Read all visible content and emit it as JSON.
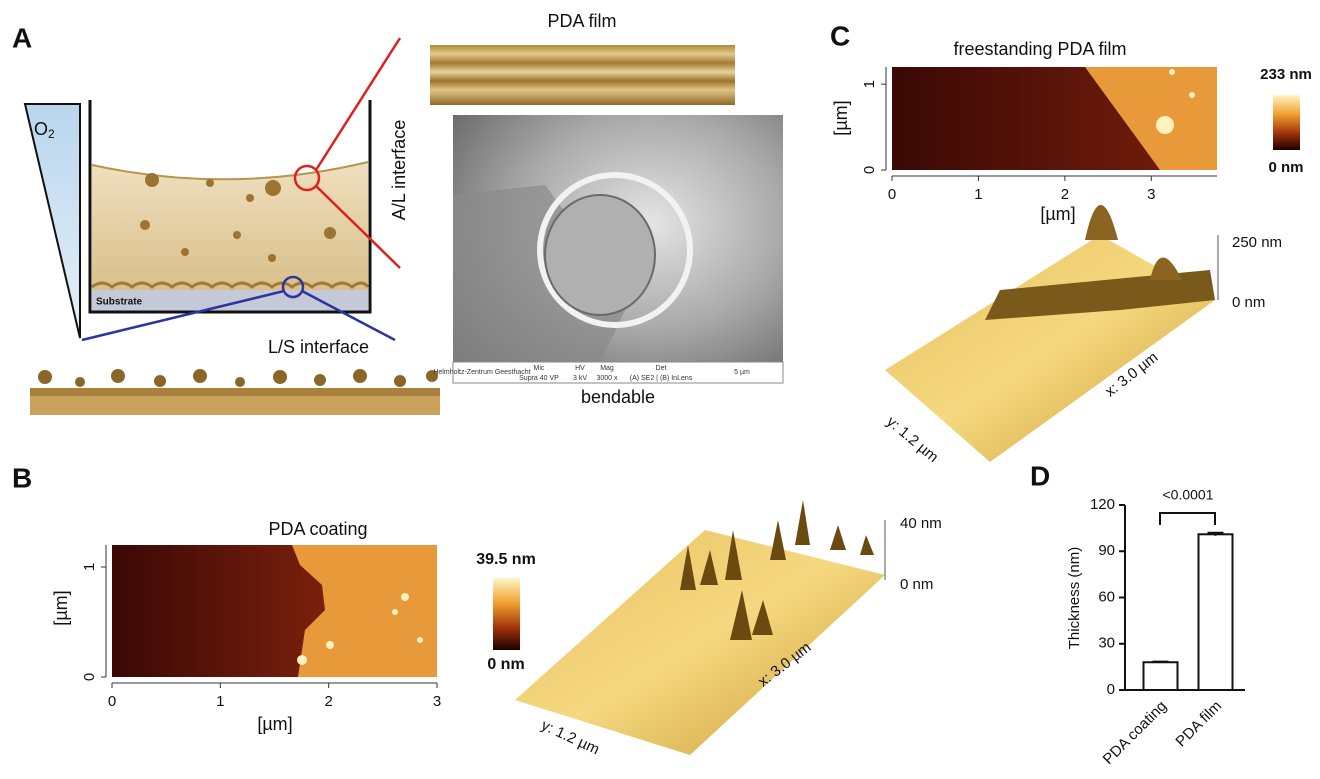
{
  "panels": {
    "A": {
      "letter": "A",
      "o2": "O",
      "o2_sub": "2",
      "al_interface": "A/L interface",
      "ls_interface": "L/S interface",
      "substrate": "Substrate",
      "film_title": "PDA film",
      "caption": "bendable",
      "sem_info": [
        "Helmholtz-Zentrum Geesthacht",
        "Mic",
        "Supra 40 VP",
        "HV",
        "3 kV",
        "Mag",
        "3000 x",
        "Det",
        "(A) SE2 | (B) InLens",
        "5 µm"
      ]
    },
    "B": {
      "letter": "B",
      "title": "PDA coating",
      "x_label": "[µm]",
      "y_label": "[µm]",
      "xlim": [
        0,
        3
      ],
      "xticks": [
        0,
        1,
        2,
        3
      ],
      "ylim": [
        0,
        1.2
      ],
      "yticks": [
        0,
        1
      ],
      "scale_max": "39.5 nm",
      "scale_min": "0 nm",
      "z_max": "40 nm",
      "z_min": "0 nm",
      "x3d": "x: 3.0 µm",
      "y3d": "y: 1.2 µm"
    },
    "C": {
      "letter": "C",
      "title": "freestanding PDA film",
      "x_label": "[µm]",
      "y_label": "[µm]",
      "xlim": [
        0,
        3.76
      ],
      "xticks": [
        0,
        1,
        2,
        3
      ],
      "ylim": [
        0,
        1.2
      ],
      "yticks": [
        0,
        1
      ],
      "scale_max": "233 nm",
      "scale_min": "0 nm",
      "z_max": "250 nm",
      "z_min": "0 nm",
      "x3d": "x: 3.0 µm",
      "y3d": "y: 1.2 µm"
    }
  },
  "chart_data": {
    "type": "bar",
    "letter": "D",
    "y_label": "Thickness (nm)",
    "annotation": "<0.0001",
    "categories": [
      "PDA coating",
      "PDA film"
    ],
    "values": [
      18,
      101
    ],
    "errors": [
      0.4,
      1
    ],
    "color": "#ffffff",
    "ylim": [
      0,
      120
    ],
    "yticks": [
      0,
      30,
      60,
      90,
      120
    ]
  }
}
